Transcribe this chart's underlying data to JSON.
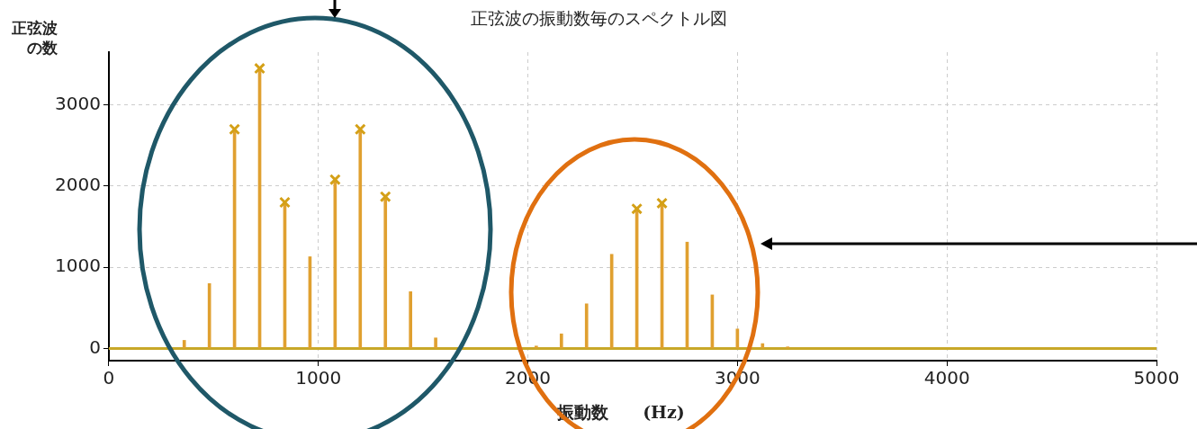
{
  "chart_data": {
    "type": "bar",
    "title": "正弦波の振動数毎のスペクトル図",
    "xlabel": "振動数　　(Hz)",
    "ylabel": "正弦波の数",
    "series": [
      {
        "color": "#e0a030",
        "x": [
          360,
          480,
          600,
          720,
          840,
          960,
          1080,
          1200,
          1320,
          1440,
          1560,
          2040,
          2160,
          2280,
          2400,
          2520,
          2640,
          2760,
          2880,
          3000,
          3120,
          3240
        ],
        "values": [
          100,
          800,
          2700,
          3450,
          1800,
          1130,
          2080,
          2700,
          1870,
          700,
          130,
          30,
          180,
          550,
          1160,
          1720,
          1790,
          1310,
          660,
          240,
          60,
          20
        ]
      },
      {
        "type": "scatter",
        "color": "#d4a017",
        "marker": "cross",
        "x": [
          600,
          720,
          840,
          1080,
          1200,
          1320,
          2520,
          2640
        ],
        "values": [
          2700,
          3450,
          1800,
          2080,
          2700,
          1870,
          1720,
          1790
        ]
      }
    ],
    "xlim": [
      0,
      5000
    ],
    "xticks": [
      0,
      1000,
      2000,
      3000,
      4000,
      5000
    ],
    "ylim": [
      -150,
      3650
    ],
    "yticks": [
      0,
      1000,
      2000,
      3000
    ],
    "ref_lines": [
      {
        "axis": "y",
        "value": 0,
        "color": "#c8a828"
      }
    ],
    "grid": true,
    "legend": false
  }
}
